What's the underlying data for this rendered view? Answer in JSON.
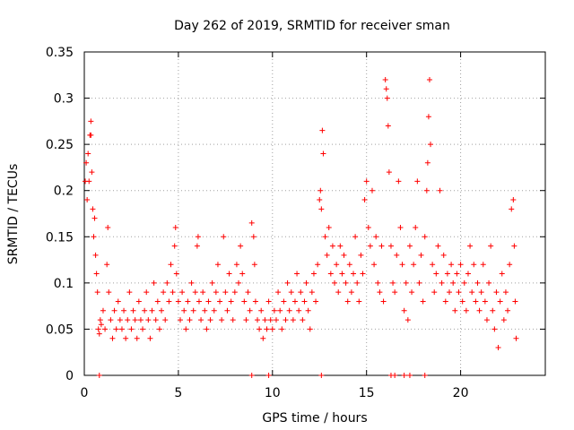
{
  "chart_data": {
    "type": "scatter",
    "title": "Day 262 of 2019, SRMTID for receiver sman",
    "xlabel": "GPS time / hours",
    "ylabel": "SRMTID / TECUs",
    "xlim": [
      0,
      24.5
    ],
    "ylim": [
      0,
      0.35
    ],
    "xticks": [
      0,
      5,
      10,
      15,
      20
    ],
    "yticks": [
      0,
      0.05,
      0.1,
      0.15,
      0.2,
      0.25,
      0.3,
      0.35
    ],
    "xtick_labels": [
      "0",
      "5",
      "10",
      "15",
      "20"
    ],
    "ytick_labels": [
      "0",
      "0.05",
      "0.1",
      "0.15",
      "0.2",
      "0.25",
      "0.3",
      "0.35"
    ],
    "grid": true,
    "marker": "plus",
    "color": "#ff0000",
    "series": [
      {
        "name": "SRMTID",
        "points": [
          [
            0.05,
            0.21
          ],
          [
            0.1,
            0.23
          ],
          [
            0.15,
            0.19
          ],
          [
            0.2,
            0.24
          ],
          [
            0.25,
            0.21
          ],
          [
            0.3,
            0.26
          ],
          [
            0.35,
            0.275
          ],
          [
            0.35,
            0.26
          ],
          [
            0.4,
            0.22
          ],
          [
            0.45,
            0.18
          ],
          [
            0.5,
            0.15
          ],
          [
            0.55,
            0.17
          ],
          [
            0.6,
            0.13
          ],
          [
            0.65,
            0.11
          ],
          [
            0.7,
            0.09
          ],
          [
            0.75,
            0.05
          ],
          [
            0.8,
            0.045
          ],
          [
            0.85,
            0.06
          ],
          [
            0.9,
            0.055
          ],
          [
            1.0,
            0.07
          ],
          [
            1.1,
            0.05
          ],
          [
            1.2,
            0.12
          ],
          [
            1.25,
            0.16
          ],
          [
            1.3,
            0.09
          ],
          [
            1.4,
            0.06
          ],
          [
            1.5,
            0.04
          ],
          [
            1.6,
            0.07
          ],
          [
            1.7,
            0.05
          ],
          [
            1.8,
            0.08
          ],
          [
            1.9,
            0.06
          ],
          [
            2.0,
            0.05
          ],
          [
            2.1,
            0.07
          ],
          [
            2.2,
            0.04
          ],
          [
            2.3,
            0.06
          ],
          [
            2.4,
            0.09
          ],
          [
            2.5,
            0.05
          ],
          [
            2.6,
            0.07
          ],
          [
            2.7,
            0.06
          ],
          [
            2.8,
            0.04
          ],
          [
            2.9,
            0.08
          ],
          [
            3.0,
            0.06
          ],
          [
            3.1,
            0.05
          ],
          [
            3.2,
            0.07
          ],
          [
            3.3,
            0.09
          ],
          [
            3.4,
            0.06
          ],
          [
            3.5,
            0.04
          ],
          [
            3.6,
            0.07
          ],
          [
            3.7,
            0.1
          ],
          [
            3.8,
            0.06
          ],
          [
            3.9,
            0.08
          ],
          [
            4.0,
            0.05
          ],
          [
            4.1,
            0.07
          ],
          [
            4.2,
            0.09
          ],
          [
            4.3,
            0.06
          ],
          [
            4.4,
            0.1
          ],
          [
            4.5,
            0.08
          ],
          [
            4.6,
            0.12
          ],
          [
            4.7,
            0.09
          ],
          [
            4.8,
            0.14
          ],
          [
            4.85,
            0.16
          ],
          [
            4.9,
            0.11
          ],
          [
            5.0,
            0.08
          ],
          [
            5.1,
            0.06
          ],
          [
            5.2,
            0.09
          ],
          [
            5.3,
            0.07
          ],
          [
            5.4,
            0.05
          ],
          [
            5.5,
            0.08
          ],
          [
            5.6,
            0.06
          ],
          [
            5.7,
            0.1
          ],
          [
            5.8,
            0.07
          ],
          [
            5.9,
            0.09
          ],
          [
            6.0,
            0.14
          ],
          [
            6.05,
            0.15
          ],
          [
            6.1,
            0.08
          ],
          [
            6.2,
            0.06
          ],
          [
            6.3,
            0.09
          ],
          [
            6.4,
            0.07
          ],
          [
            6.5,
            0.05
          ],
          [
            6.6,
            0.08
          ],
          [
            6.7,
            0.06
          ],
          [
            6.8,
            0.1
          ],
          [
            6.9,
            0.07
          ],
          [
            7.0,
            0.09
          ],
          [
            7.1,
            0.12
          ],
          [
            7.2,
            0.08
          ],
          [
            7.3,
            0.06
          ],
          [
            7.4,
            0.15
          ],
          [
            7.5,
            0.09
          ],
          [
            7.6,
            0.07
          ],
          [
            7.7,
            0.11
          ],
          [
            7.8,
            0.08
          ],
          [
            7.9,
            0.06
          ],
          [
            8.0,
            0.09
          ],
          [
            8.1,
            0.12
          ],
          [
            8.2,
            0.1
          ],
          [
            8.3,
            0.14
          ],
          [
            8.4,
            0.11
          ],
          [
            8.5,
            0.08
          ],
          [
            8.6,
            0.06
          ],
          [
            8.7,
            0.09
          ],
          [
            8.8,
            0.07
          ],
          [
            8.9,
            0.165
          ],
          [
            9.0,
            0.15
          ],
          [
            9.05,
            0.12
          ],
          [
            9.1,
            0.08
          ],
          [
            9.2,
            0.06
          ],
          [
            9.3,
            0.05
          ],
          [
            9.4,
            0.07
          ],
          [
            9.5,
            0.04
          ],
          [
            9.6,
            0.06
          ],
          [
            9.7,
            0.05
          ],
          [
            9.8,
            0.08
          ],
          [
            9.9,
            0.06
          ],
          [
            10.0,
            0.05
          ],
          [
            10.1,
            0.07
          ],
          [
            10.2,
            0.06
          ],
          [
            10.3,
            0.09
          ],
          [
            10.4,
            0.07
          ],
          [
            10.5,
            0.05
          ],
          [
            10.6,
            0.08
          ],
          [
            10.7,
            0.06
          ],
          [
            10.8,
            0.1
          ],
          [
            10.9,
            0.07
          ],
          [
            11.0,
            0.09
          ],
          [
            11.1,
            0.06
          ],
          [
            11.2,
            0.08
          ],
          [
            11.3,
            0.11
          ],
          [
            11.4,
            0.07
          ],
          [
            11.5,
            0.09
          ],
          [
            11.6,
            0.06
          ],
          [
            11.7,
            0.08
          ],
          [
            11.8,
            0.1
          ],
          [
            11.9,
            0.07
          ],
          [
            12.0,
            0.05
          ],
          [
            12.1,
            0.09
          ],
          [
            12.2,
            0.11
          ],
          [
            12.3,
            0.08
          ],
          [
            12.4,
            0.12
          ],
          [
            12.5,
            0.19
          ],
          [
            12.55,
            0.2
          ],
          [
            12.6,
            0.18
          ],
          [
            12.65,
            0.265
          ],
          [
            12.7,
            0.24
          ],
          [
            12.8,
            0.15
          ],
          [
            12.9,
            0.13
          ],
          [
            13.0,
            0.16
          ],
          [
            13.1,
            0.11
          ],
          [
            13.2,
            0.14
          ],
          [
            13.3,
            0.1
          ],
          [
            13.4,
            0.12
          ],
          [
            13.5,
            0.09
          ],
          [
            13.6,
            0.14
          ],
          [
            13.7,
            0.11
          ],
          [
            13.8,
            0.13
          ],
          [
            13.9,
            0.1
          ],
          [
            14.0,
            0.08
          ],
          [
            14.1,
            0.12
          ],
          [
            14.2,
            0.09
          ],
          [
            14.3,
            0.11
          ],
          [
            14.4,
            0.15
          ],
          [
            14.5,
            0.1
          ],
          [
            14.6,
            0.08
          ],
          [
            14.7,
            0.13
          ],
          [
            14.8,
            0.11
          ],
          [
            14.9,
            0.19
          ],
          [
            15.0,
            0.21
          ],
          [
            15.1,
            0.16
          ],
          [
            15.2,
            0.14
          ],
          [
            15.3,
            0.2
          ],
          [
            15.4,
            0.12
          ],
          [
            15.5,
            0.15
          ],
          [
            15.6,
            0.1
          ],
          [
            15.7,
            0.09
          ],
          [
            15.8,
            0.14
          ],
          [
            15.9,
            0.08
          ],
          [
            16.0,
            0.32
          ],
          [
            16.05,
            0.31
          ],
          [
            16.1,
            0.3
          ],
          [
            16.15,
            0.27
          ],
          [
            16.2,
            0.22
          ],
          [
            16.3,
            0.14
          ],
          [
            16.4,
            0.1
          ],
          [
            16.5,
            0.09
          ],
          [
            16.6,
            0.13
          ],
          [
            16.7,
            0.21
          ],
          [
            16.8,
            0.16
          ],
          [
            16.9,
            0.12
          ],
          [
            17.0,
            0.07
          ],
          [
            17.1,
            0.1
          ],
          [
            17.2,
            0.06
          ],
          [
            17.3,
            0.14
          ],
          [
            17.4,
            0.09
          ],
          [
            17.5,
            0.12
          ],
          [
            17.6,
            0.16
          ],
          [
            17.7,
            0.21
          ],
          [
            17.8,
            0.1
          ],
          [
            17.9,
            0.13
          ],
          [
            18.0,
            0.08
          ],
          [
            18.1,
            0.15
          ],
          [
            18.2,
            0.2
          ],
          [
            18.25,
            0.23
          ],
          [
            18.3,
            0.28
          ],
          [
            18.35,
            0.32
          ],
          [
            18.4,
            0.25
          ],
          [
            18.5,
            0.12
          ],
          [
            18.6,
            0.09
          ],
          [
            18.7,
            0.11
          ],
          [
            18.8,
            0.14
          ],
          [
            18.9,
            0.2
          ],
          [
            19.0,
            0.1
          ],
          [
            19.1,
            0.13
          ],
          [
            19.2,
            0.08
          ],
          [
            19.3,
            0.11
          ],
          [
            19.4,
            0.09
          ],
          [
            19.5,
            0.12
          ],
          [
            19.6,
            0.1
          ],
          [
            19.7,
            0.07
          ],
          [
            19.8,
            0.11
          ],
          [
            19.9,
            0.09
          ],
          [
            20.0,
            0.12
          ],
          [
            20.1,
            0.08
          ],
          [
            20.2,
            0.1
          ],
          [
            20.3,
            0.07
          ],
          [
            20.4,
            0.11
          ],
          [
            20.5,
            0.14
          ],
          [
            20.6,
            0.09
          ],
          [
            20.7,
            0.12
          ],
          [
            20.8,
            0.08
          ],
          [
            20.9,
            0.1
          ],
          [
            21.0,
            0.07
          ],
          [
            21.1,
            0.09
          ],
          [
            21.2,
            0.12
          ],
          [
            21.3,
            0.08
          ],
          [
            21.4,
            0.06
          ],
          [
            21.5,
            0.1
          ],
          [
            21.6,
            0.14
          ],
          [
            21.7,
            0.07
          ],
          [
            21.8,
            0.05
          ],
          [
            21.9,
            0.09
          ],
          [
            22.0,
            0.03
          ],
          [
            22.1,
            0.08
          ],
          [
            22.2,
            0.11
          ],
          [
            22.3,
            0.06
          ],
          [
            22.4,
            0.09
          ],
          [
            22.5,
            0.07
          ],
          [
            22.6,
            0.12
          ],
          [
            22.7,
            0.18
          ],
          [
            22.8,
            0.19
          ],
          [
            22.85,
            0.14
          ],
          [
            22.9,
            0.08
          ],
          [
            22.95,
            0.04
          ]
        ]
      }
    ],
    "zero_markers_x": [
      0.8,
      8.9,
      9.8,
      12.6,
      16.3,
      16.5,
      17.0,
      17.3,
      18.1
    ]
  }
}
